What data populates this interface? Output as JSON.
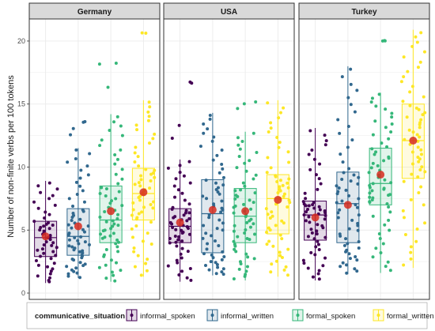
{
  "chart_data": {
    "type": "boxplot",
    "facets": [
      "Germany",
      "USA",
      "Turkey"
    ],
    "ylabel": "Number of non-finite verbs per 100 tokens",
    "xlabel": "",
    "ylim": [
      0,
      21
    ],
    "yticks": [
      0,
      5,
      10,
      15,
      20
    ],
    "grid": true,
    "legend": {
      "title": "communicative_situation",
      "position": "bottom",
      "entries": [
        "informal_spoken",
        "informal_written",
        "formal_spoken",
        "formal_written"
      ]
    },
    "colors": {
      "informal_spoken": "#440154",
      "informal_written": "#31688e",
      "formal_spoken": "#35b779",
      "formal_written": "#fde725",
      "mean_marker": "#d62a1e",
      "strip_fill": "#d9d9d9",
      "panel_border": "#333333",
      "grid": "#ebebeb"
    },
    "series": [
      {
        "facet": "Germany",
        "name": "informal_spoken",
        "min": 0.8,
        "q1": 2.9,
        "median": 4.4,
        "q3": 5.7,
        "max": 8.9,
        "mean": 4.5,
        "n": 50
      },
      {
        "facet": "Germany",
        "name": "informal_written",
        "min": 1.2,
        "q1": 3.0,
        "median": 4.5,
        "q3": 6.7,
        "max": 11.5,
        "mean": 5.3,
        "n": 60,
        "outliers": [
          12.6,
          13.1,
          13.6,
          13.6
        ]
      },
      {
        "facet": "Germany",
        "name": "formal_spoken",
        "min": 0.9,
        "q1": 4.0,
        "median": 5.8,
        "q3": 8.5,
        "max": 14.2,
        "mean": 6.5,
        "n": 60,
        "outliers": [
          16.3,
          18.2,
          18.2
        ]
      },
      {
        "facet": "Germany",
        "name": "formal_written",
        "min": 1.3,
        "q1": 5.8,
        "median": 7.9,
        "q3": 9.9,
        "max": 15.3,
        "mean": 8.0,
        "n": 60,
        "outliers": [
          20.6,
          20.6
        ]
      },
      {
        "facet": "USA",
        "name": "informal_spoken",
        "min": 0.9,
        "q1": 4.0,
        "median": 5.3,
        "q3": 6.7,
        "max": 10.6,
        "mean": 5.6,
        "n": 55,
        "outliers": [
          12.3,
          13.3,
          16.7,
          16.7
        ]
      },
      {
        "facet": "USA",
        "name": "informal_written",
        "min": 1.4,
        "q1": 3.2,
        "median": 6.3,
        "q3": 9.0,
        "max": 14.3,
        "mean": 6.6,
        "n": 60
      },
      {
        "facet": "USA",
        "name": "formal_spoken",
        "min": 1.0,
        "q1": 4.0,
        "median": 6.1,
        "q3": 8.3,
        "max": 12.8,
        "mean": 6.5,
        "n": 60,
        "outliers": [
          14.6,
          15.0,
          15.2
        ]
      },
      {
        "facet": "USA",
        "name": "formal_written",
        "min": 1.3,
        "q1": 4.7,
        "median": 7.5,
        "q3": 9.4,
        "max": 15.3,
        "mean": 7.4,
        "n": 60
      },
      {
        "facet": "Turkey",
        "name": "informal_spoken",
        "min": 1.0,
        "q1": 4.2,
        "median": 6.2,
        "q3": 7.3,
        "max": 13.1,
        "mean": 6.0,
        "n": 60
      },
      {
        "facet": "Turkey",
        "name": "informal_written",
        "min": 1.5,
        "q1": 4.0,
        "median": 7.1,
        "q3": 9.6,
        "max": 18.0,
        "mean": 7.0,
        "n": 60
      },
      {
        "facet": "Turkey",
        "name": "formal_spoken",
        "min": 1.6,
        "q1": 7.0,
        "median": 8.7,
        "q3": 11.5,
        "max": 15.9,
        "mean": 9.4,
        "n": 60,
        "outliers": [
          20.0,
          20.0,
          20.0
        ]
      },
      {
        "facet": "Turkey",
        "name": "formal_written",
        "min": 2.0,
        "q1": 9.1,
        "median": 12.1,
        "q3": 15.0,
        "max": 20.9,
        "mean": 12.1,
        "n": 60
      }
    ]
  }
}
